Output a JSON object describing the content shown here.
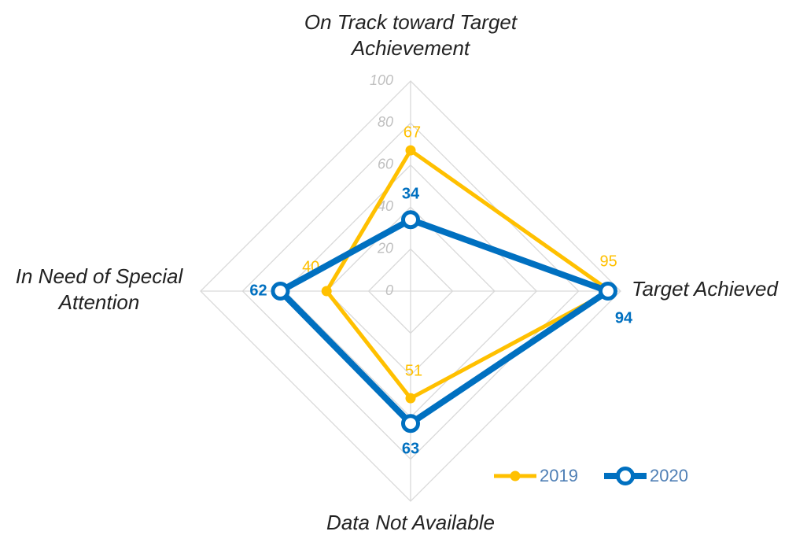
{
  "chart_data": {
    "type": "radar",
    "categories": [
      "On Track toward Target Achievement",
      "Target Achieved",
      "Data Not Available",
      "In Need of Special Attention"
    ],
    "series": [
      {
        "name": "2019",
        "color": "#FFC000",
        "values": [
          67,
          95,
          51,
          40
        ]
      },
      {
        "name": "2020",
        "color": "#0070C0",
        "values": [
          34,
          94,
          63,
          62
        ]
      }
    ],
    "ylim": [
      0,
      100
    ],
    "yticks": [
      0,
      20,
      40,
      60,
      80,
      100
    ],
    "grid": true,
    "legend": "lower right"
  }
}
